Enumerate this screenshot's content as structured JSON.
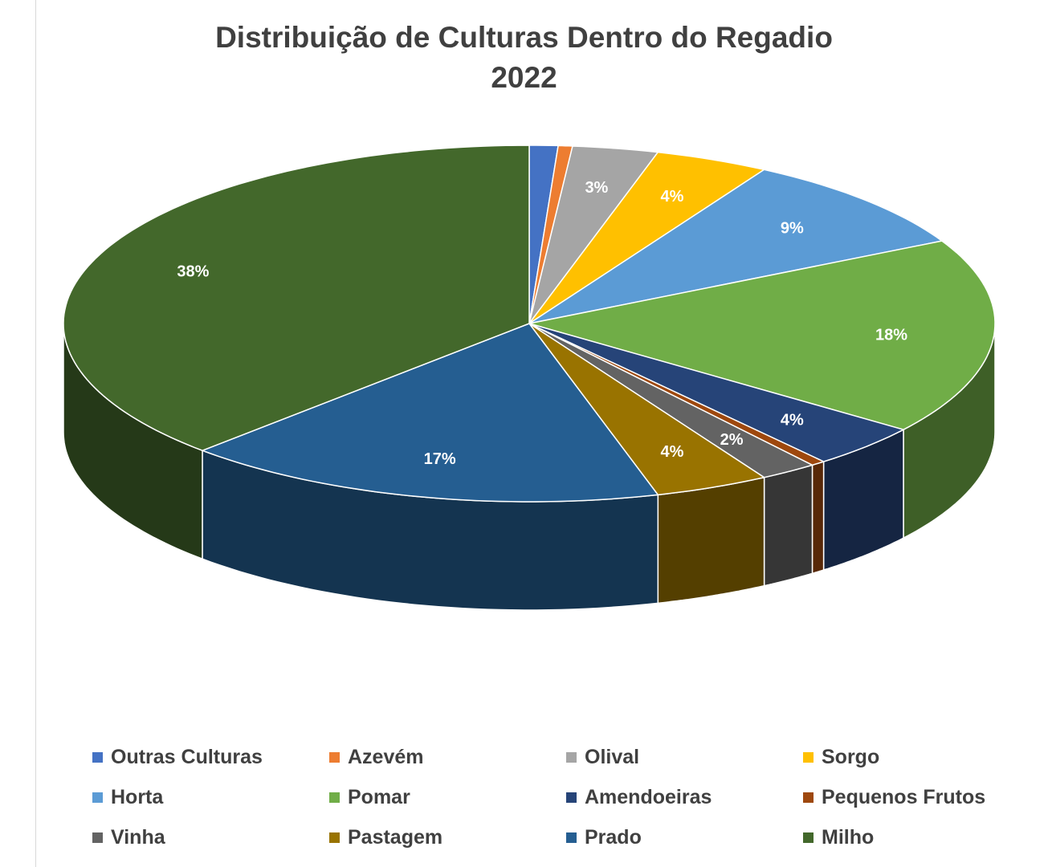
{
  "chart_data": {
    "type": "pie",
    "title": "Distribuição de Culturas Dentro do Regadio",
    "subtitle": "2022",
    "categories": [
      "Outras Culturas",
      "Azevém",
      "Olival",
      "Sorgo",
      "Horta",
      "Pomar",
      "Amendoeiras",
      "Pequenos Frutos",
      "Vinha",
      "Pastagem",
      "Prado",
      "Milho"
    ],
    "values": [
      1,
      0.5,
      3,
      4,
      9,
      18,
      4,
      0.5,
      2,
      4,
      17,
      38
    ],
    "data_labels": [
      "",
      "",
      "3%",
      "4%",
      "9%",
      "18%",
      "4%",
      "",
      "2%",
      "4%",
      "17%",
      "38%"
    ],
    "colors": [
      "#4472c4",
      "#ed7d31",
      "#a5a5a5",
      "#ffc000",
      "#5b9bd5",
      "#70ad47",
      "#264478",
      "#9e480e",
      "#636363",
      "#997300",
      "#255e91",
      "#43682b"
    ],
    "legend_position": "bottom",
    "style": "3d"
  }
}
